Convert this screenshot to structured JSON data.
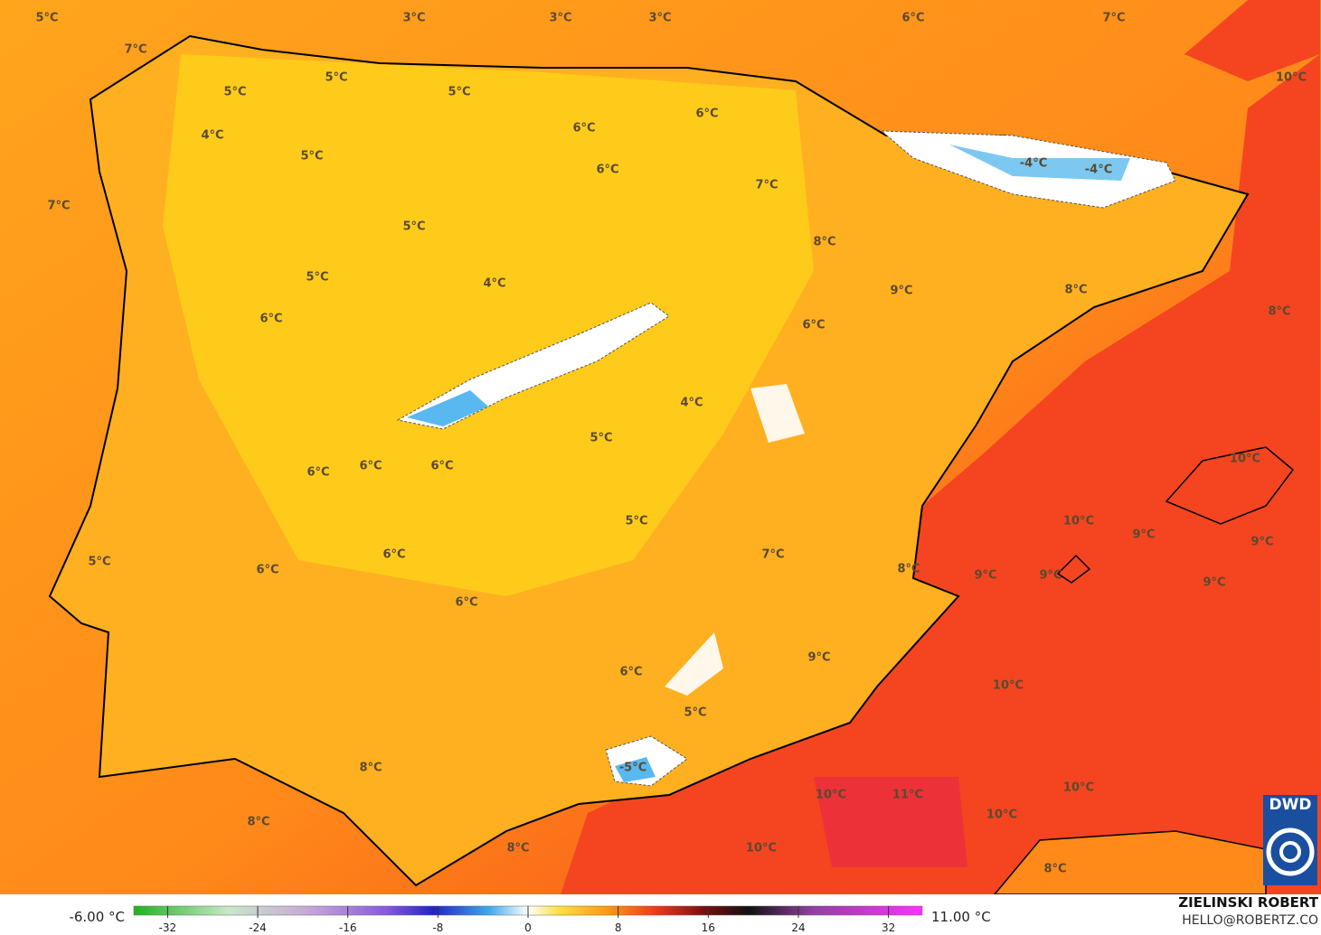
{
  "map": {
    "labels": [
      "5°C",
      "3°C",
      "3°C",
      "3°C",
      "6°C",
      "7°C",
      "10°C",
      "7°C",
      "5°C",
      "5°C",
      "5°C",
      "6°C",
      "4°C",
      "6°C",
      "5°C",
      "6°C",
      "-4°C",
      "-4°C",
      "7°C",
      "7°C",
      "5°C",
      "8°C",
      "5°C",
      "4°C",
      "9°C",
      "8°C",
      "8°C",
      "6°C",
      "6°C",
      "4°C",
      "5°C",
      "10°C",
      "6°C",
      "6°C",
      "6°C",
      "10°C",
      "5°C",
      "9°C",
      "9°C",
      "6°C",
      "7°C",
      "5°C",
      "6°C",
      "8°C",
      "9°C",
      "9°C",
      "9°C",
      "6°C",
      "9°C",
      "6°C",
      "10°C",
      "5°C",
      "8°C",
      "-5°C",
      "10°C",
      "11°C",
      "10°C",
      "8°C",
      "10°C",
      "8°C",
      "10°C",
      "8°C"
    ],
    "colorbar": {
      "min_label": "-6.00 °C",
      "max_label": "11.00 °C",
      "clim": [
        -35,
        35
      ],
      "ticks": [
        -32,
        -24,
        -16,
        -8,
        0,
        8,
        16,
        24,
        32
      ]
    },
    "credit": {
      "author": "ZIELINSKI ROBERT",
      "contact": "HELLO@ROBERTZ.CO",
      "logo": "DWD"
    }
  }
}
